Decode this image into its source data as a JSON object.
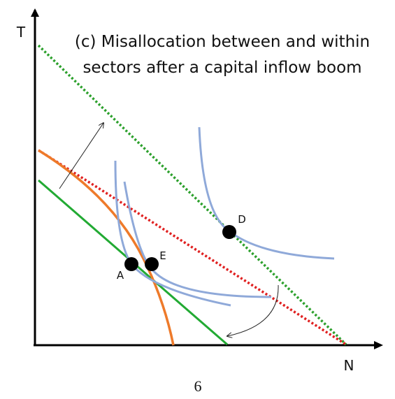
{
  "title": {
    "line1": "(c) Misallocation between and within",
    "line2": "sectors after a capital inflow boom"
  },
  "axes": {
    "y_label": "T",
    "x_label": "N"
  },
  "points": [
    {
      "label": "A"
    },
    {
      "label": "E"
    },
    {
      "label": "D"
    }
  ],
  "page_number": "6"
}
